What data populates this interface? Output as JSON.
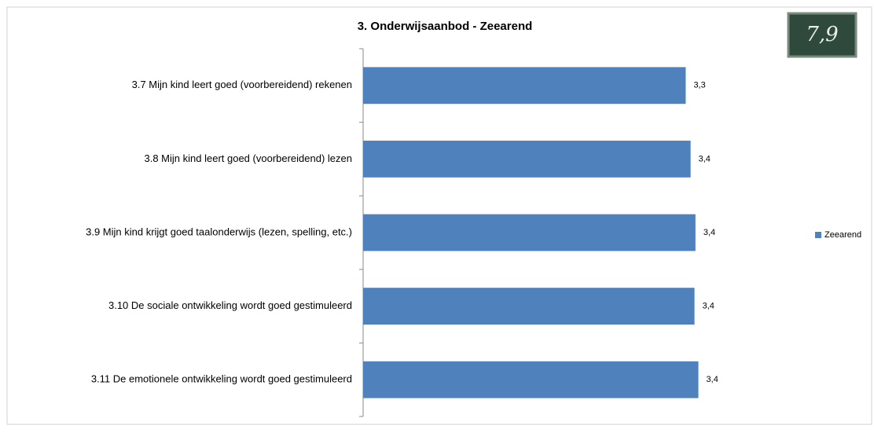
{
  "chart_data": {
    "type": "bar",
    "orientation": "horizontal",
    "title": "3. Onderwijsaanbod - Zeearend",
    "categories": [
      "3.7 Mijn kind leert goed (voorbereidend) rekenen",
      "3.8 Mijn kind leert goed (voorbereidend) lezen",
      "3.9 Mijn kind krijgt goed taalonderwijs (lezen, spelling, etc.)",
      "3.10 De sociale ontwikkeling wordt goed gestimuleerd",
      "3.11 De emotionele ontwikkeling wordt goed gestimuleerd"
    ],
    "series": [
      {
        "name": "Zeearend",
        "color": "#4f81bd",
        "values": [
          3.31,
          3.36,
          3.41,
          3.4,
          3.44
        ],
        "value_labels": [
          "3,3",
          "3,4",
          "3,4",
          "3,4",
          "3,4"
        ]
      }
    ],
    "xlim": [
      0,
      4
    ],
    "legend": "right"
  },
  "badge": "7,9"
}
